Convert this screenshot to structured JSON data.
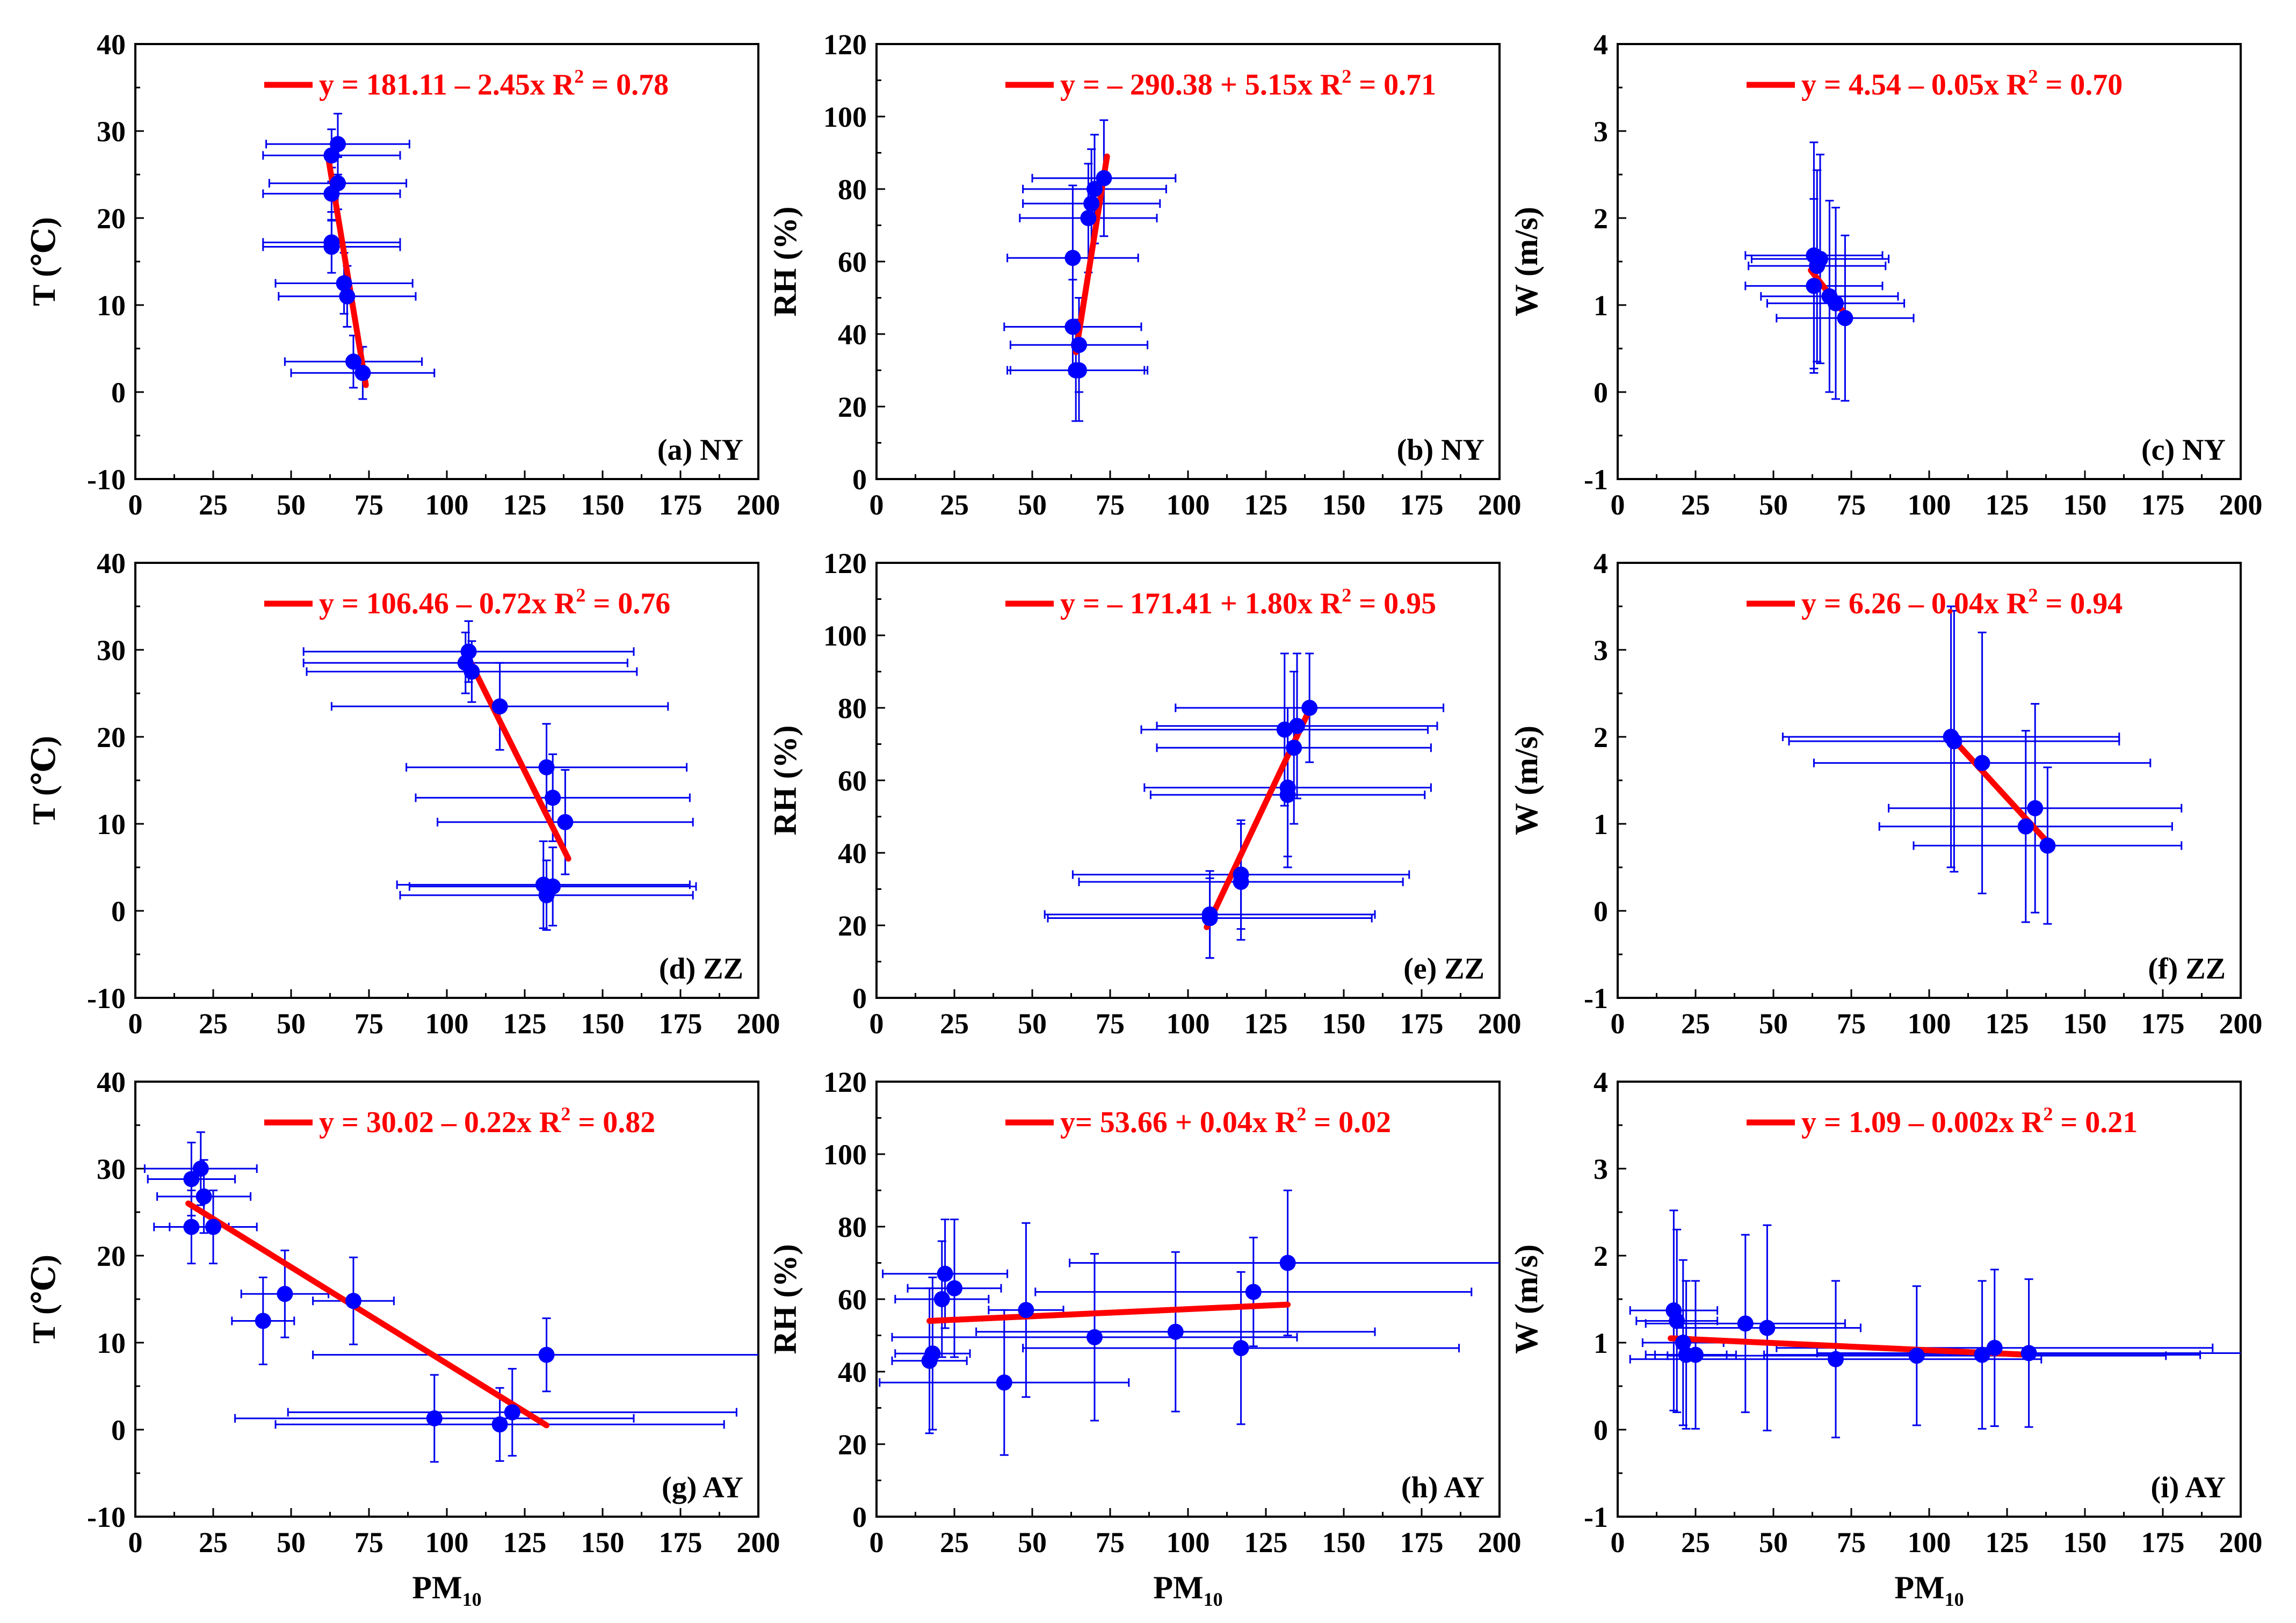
{
  "figure": {
    "x_axis_title": "PM",
    "x_axis_subscript": "10"
  },
  "chart_data": [
    {
      "id": "a",
      "type": "scatter",
      "panel_label": "(a) NY",
      "ylabel": "T (℃)",
      "xlim": [
        0,
        200
      ],
      "ylim": [
        -10,
        40
      ],
      "xticks": [
        "0",
        "25",
        "50",
        "75",
        "100",
        "125",
        "150",
        "175",
        "200"
      ],
      "yticks": [
        "-10",
        "0",
        "10",
        "20",
        "30",
        "40"
      ],
      "equation": {
        "lhs": "y = 181.11 – 2.45x",
        "r2_label": "R",
        "r2_sup": "2",
        "r2_value": " = 0.78"
      },
      "points": [
        {
          "x": 65,
          "y": 28.5
        },
        {
          "x": 63,
          "y": 27.2
        },
        {
          "x": 65,
          "y": 24
        },
        {
          "x": 63,
          "y": 22.8
        },
        {
          "x": 63,
          "y": 17.2
        },
        {
          "x": 63,
          "y": 16.7
        },
        {
          "x": 67,
          "y": 12.5
        },
        {
          "x": 68,
          "y": 11
        },
        {
          "x": 70,
          "y": 3.5
        },
        {
          "x": 73,
          "y": 2.2
        }
      ],
      "xerr": [
        23,
        22,
        22,
        22,
        22,
        22,
        22,
        22,
        22,
        23
      ],
      "yerr": [
        3.5,
        3,
        3,
        3,
        3.5,
        3,
        3.5,
        3.5,
        3,
        3
      ],
      "fit": {
        "x": [
          62,
          74
        ],
        "y": [
          26.8,
          0.8
        ]
      }
    },
    {
      "id": "b",
      "type": "scatter",
      "panel_label": "(b) NY",
      "ylabel": "RH (%)",
      "xlim": [
        0,
        200
      ],
      "ylim": [
        0,
        120
      ],
      "xticks": [
        "0",
        "25",
        "50",
        "75",
        "100",
        "125",
        "150",
        "175",
        "200"
      ],
      "yticks": [
        "0",
        "20",
        "40",
        "60",
        "80",
        "100",
        "120"
      ],
      "equation": {
        "lhs": "y = – 290.38 + 5.15x",
        "r2_label": "R",
        "r2_sup": "2",
        "r2_value": " = 0.71"
      },
      "points": [
        {
          "x": 73,
          "y": 83
        },
        {
          "x": 70,
          "y": 80
        },
        {
          "x": 69,
          "y": 76
        },
        {
          "x": 68,
          "y": 72
        },
        {
          "x": 63,
          "y": 61
        },
        {
          "x": 63,
          "y": 42
        },
        {
          "x": 65,
          "y": 37
        },
        {
          "x": 64,
          "y": 30
        },
        {
          "x": 65,
          "y": 30
        }
      ],
      "xerr": [
        23,
        23,
        22,
        22,
        21,
        22,
        22,
        22,
        22
      ],
      "yerr": [
        16,
        15,
        15,
        15,
        20,
        13,
        13,
        14,
        14
      ],
      "fit": {
        "x": [
          64,
          74
        ],
        "y": [
          35,
          89
        ]
      }
    },
    {
      "id": "c",
      "type": "scatter",
      "panel_label": "(c) NY",
      "ylabel": "W (m/s)",
      "xlim": [
        0,
        200
      ],
      "ylim": [
        -1,
        4
      ],
      "xticks": [
        "0",
        "25",
        "50",
        "75",
        "100",
        "125",
        "150",
        "175",
        "200"
      ],
      "yticks": [
        "-1",
        "0",
        "1",
        "2",
        "3",
        "4"
      ],
      "equation": {
        "lhs": "y = 4.54 – 0.05x",
        "r2_label": "R",
        "r2_sup": "2",
        "r2_value": " = 0.70"
      },
      "points": [
        {
          "x": 63,
          "y": 1.57
        },
        {
          "x": 65,
          "y": 1.53
        },
        {
          "x": 64,
          "y": 1.45
        },
        {
          "x": 63,
          "y": 1.22
        },
        {
          "x": 68,
          "y": 1.1
        },
        {
          "x": 70,
          "y": 1.02
        },
        {
          "x": 73,
          "y": 0.85
        }
      ],
      "xerr": [
        22,
        22,
        22,
        22,
        22,
        22,
        22
      ],
      "yerr": [
        1.3,
        1.2,
        1.1,
        1.0,
        1.1,
        1.1,
        0.95
      ],
      "fit": {
        "x": [
          62,
          74
        ],
        "y": [
          1.4,
          0.85
        ]
      }
    },
    {
      "id": "d",
      "type": "scatter",
      "panel_label": "(d) ZZ",
      "ylabel": "T (℃)",
      "xlim": [
        0,
        200
      ],
      "ylim": [
        -10,
        40
      ],
      "xticks": [
        "0",
        "25",
        "50",
        "75",
        "100",
        "125",
        "150",
        "175",
        "200"
      ],
      "yticks": [
        "-10",
        "0",
        "10",
        "20",
        "30",
        "40"
      ],
      "equation": {
        "lhs": "y = 106.46 – 0.72x",
        "r2_label": "R",
        "r2_sup": "2",
        "r2_value": " = 0.76"
      },
      "points": [
        {
          "x": 107,
          "y": 29.8
        },
        {
          "x": 106,
          "y": 28.5
        },
        {
          "x": 108,
          "y": 27.5
        },
        {
          "x": 117,
          "y": 23.5
        },
        {
          "x": 132,
          "y": 16.5
        },
        {
          "x": 134,
          "y": 13
        },
        {
          "x": 138,
          "y": 10.2
        },
        {
          "x": 131,
          "y": 3
        },
        {
          "x": 134,
          "y": 2.8
        },
        {
          "x": 132,
          "y": 1.8
        }
      ],
      "xerr": [
        53,
        52,
        53,
        54,
        45,
        44,
        41,
        47,
        46,
        47
      ],
      "yerr": [
        3.5,
        3.5,
        3.5,
        5,
        5,
        5,
        6,
        5,
        4.5,
        4
      ],
      "fit": {
        "x": [
          107,
          139
        ],
        "y": [
          29,
          6
        ]
      }
    },
    {
      "id": "e",
      "type": "scatter",
      "panel_label": "(e) ZZ",
      "ylabel": "RH (%)",
      "xlim": [
        0,
        200
      ],
      "ylim": [
        0,
        120
      ],
      "xticks": [
        "0",
        "25",
        "50",
        "75",
        "100",
        "125",
        "150",
        "175",
        "200"
      ],
      "yticks": [
        "0",
        "20",
        "40",
        "60",
        "80",
        "100",
        "120"
      ],
      "equation": {
        "lhs": "y = – 171.41 + 1.80x",
        "r2_label": "R",
        "r2_sup": "2",
        "r2_value": " = 0.95"
      },
      "points": [
        {
          "x": 139,
          "y": 80
        },
        {
          "x": 135,
          "y": 75
        },
        {
          "x": 131,
          "y": 74
        },
        {
          "x": 134,
          "y": 69
        },
        {
          "x": 132,
          "y": 58
        },
        {
          "x": 132,
          "y": 56
        },
        {
          "x": 117,
          "y": 34
        },
        {
          "x": 117,
          "y": 32
        },
        {
          "x": 107,
          "y": 23
        },
        {
          "x": 107,
          "y": 22
        }
      ],
      "xerr": [
        43,
        45,
        46,
        44,
        46,
        44,
        54,
        52,
        53,
        52
      ],
      "yerr": [
        15,
        20,
        21,
        21,
        22,
        17,
        15,
        16,
        12,
        11
      ],
      "fit": {
        "x": [
          106,
          139
        ],
        "y": [
          19.5,
          79.5
        ]
      }
    },
    {
      "id": "f",
      "type": "scatter",
      "panel_label": "(f) ZZ",
      "ylabel": "W (m/s)",
      "xlim": [
        0,
        200
      ],
      "ylim": [
        -1,
        4
      ],
      "xticks": [
        "0",
        "25",
        "50",
        "75",
        "100",
        "125",
        "150",
        "175",
        "200"
      ],
      "yticks": [
        "-1",
        "0",
        "1",
        "2",
        "3",
        "4"
      ],
      "equation": {
        "lhs": "y = 6.26 – 0.04x",
        "r2_label": "R",
        "r2_sup": "2",
        "r2_value": " = 0.94"
      },
      "points": [
        {
          "x": 107,
          "y": 2.0
        },
        {
          "x": 108,
          "y": 1.95
        },
        {
          "x": 117,
          "y": 1.7
        },
        {
          "x": 134,
          "y": 1.18
        },
        {
          "x": 131,
          "y": 0.97
        },
        {
          "x": 138,
          "y": 0.75
        }
      ],
      "xerr": [
        54,
        53,
        54,
        47,
        47,
        43
      ],
      "yerr": [
        1.5,
        1.5,
        1.5,
        1.2,
        1.1,
        0.9
      ],
      "fit": {
        "x": [
          107,
          139
        ],
        "y": [
          2.0,
          0.75
        ]
      }
    },
    {
      "id": "g",
      "type": "scatter",
      "panel_label": "(g) AY",
      "ylabel": "T (℃)",
      "xlim": [
        0,
        200
      ],
      "ylim": [
        -10,
        40
      ],
      "xticks": [
        "0",
        "25",
        "50",
        "75",
        "100",
        "125",
        "150",
        "175",
        "200"
      ],
      "yticks": [
        "-10",
        "0",
        "10",
        "20",
        "30",
        "40"
      ],
      "equation": {
        "lhs": "y = 30.02 – 0.22x",
        "r2_label": "R",
        "r2_sup": "2",
        "r2_value": " = 0.82"
      },
      "points": [
        {
          "x": 21,
          "y": 30
        },
        {
          "x": 18,
          "y": 28.8
        },
        {
          "x": 22,
          "y": 26.8
        },
        {
          "x": 18,
          "y": 23.3
        },
        {
          "x": 25,
          "y": 23.3
        },
        {
          "x": 48,
          "y": 15.6
        },
        {
          "x": 70,
          "y": 14.8
        },
        {
          "x": 41,
          "y": 12.5
        },
        {
          "x": 132,
          "y": 8.6
        },
        {
          "x": 96,
          "y": 1.3
        },
        {
          "x": 121,
          "y": 2
        },
        {
          "x": 117,
          "y": 0.6
        }
      ],
      "xerr": [
        18,
        14,
        15,
        12,
        14,
        14,
        13,
        10,
        75,
        64,
        72,
        72
      ],
      "yerr": [
        4.2,
        4.2,
        4.2,
        4.2,
        4.2,
        5,
        5,
        5,
        4.2,
        5,
        5,
        4.2
      ],
      "fit": {
        "x": [
          17,
          132
        ],
        "y": [
          26,
          0.5
        ]
      }
    },
    {
      "id": "h",
      "type": "scatter",
      "panel_label": "(h) AY",
      "ylabel": "RH (%)",
      "xlim": [
        0,
        200
      ],
      "ylim": [
        0,
        120
      ],
      "xticks": [
        "0",
        "25",
        "50",
        "75",
        "100",
        "125",
        "150",
        "175",
        "200"
      ],
      "yticks": [
        "0",
        "20",
        "40",
        "60",
        "80",
        "100",
        "120"
      ],
      "equation": {
        "lhs": "y= 53.66 + 0.04x",
        "r2_label": "R",
        "r2_sup": "2",
        "r2_value": " = 0.02"
      },
      "points": [
        {
          "x": 132,
          "y": 70
        },
        {
          "x": 22,
          "y": 67
        },
        {
          "x": 25,
          "y": 63
        },
        {
          "x": 121,
          "y": 62
        },
        {
          "x": 21,
          "y": 60
        },
        {
          "x": 48,
          "y": 57
        },
        {
          "x": 96,
          "y": 51
        },
        {
          "x": 70,
          "y": 49.5
        },
        {
          "x": 117,
          "y": 46.5
        },
        {
          "x": 18,
          "y": 45
        },
        {
          "x": 17,
          "y": 43
        },
        {
          "x": 41,
          "y": 37
        }
      ],
      "xerr": [
        70,
        20,
        15,
        70,
        15,
        12,
        64,
        65,
        70,
        12,
        12,
        40
      ],
      "yerr": [
        20,
        15,
        19,
        15,
        16,
        24,
        22,
        23,
        21,
        21,
        20,
        20
      ],
      "fit": {
        "x": [
          17,
          132
        ],
        "y": [
          54,
          58.5
        ]
      }
    },
    {
      "id": "i",
      "type": "scatter",
      "panel_label": "(i) AY",
      "ylabel": "W (m/s)",
      "xlim": [
        0,
        200
      ],
      "ylim": [
        -1,
        4
      ],
      "xticks": [
        "0",
        "25",
        "50",
        "75",
        "100",
        "125",
        "150",
        "175",
        "200"
      ],
      "yticks": [
        "-1",
        "0",
        "1",
        "2",
        "3",
        "4"
      ],
      "equation": {
        "lhs": "y = 1.09 – 0.002x",
        "r2_label": "R",
        "r2_sup": "2",
        "r2_value": " = 0.21"
      },
      "points": [
        {
          "x": 18,
          "y": 1.37
        },
        {
          "x": 19,
          "y": 1.25
        },
        {
          "x": 41,
          "y": 1.22
        },
        {
          "x": 48,
          "y": 1.17
        },
        {
          "x": 21,
          "y": 1.0
        },
        {
          "x": 121,
          "y": 0.94
        },
        {
          "x": 22,
          "y": 0.86
        },
        {
          "x": 25,
          "y": 0.86
        },
        {
          "x": 132,
          "y": 0.88
        },
        {
          "x": 117,
          "y": 0.86
        },
        {
          "x": 96,
          "y": 0.85
        },
        {
          "x": 70,
          "y": 0.81
        }
      ],
      "xerr": [
        14,
        13,
        32,
        30,
        13,
        70,
        13,
        13,
        68,
        70,
        80,
        66
      ],
      "yerr": [
        1.15,
        1.05,
        1.02,
        1.18,
        0.95,
        0.9,
        0.85,
        0.85,
        0.85,
        0.85,
        0.8,
        0.9
      ],
      "fit": {
        "x": [
          17,
          132
        ],
        "y": [
          1.05,
          0.86
        ]
      }
    }
  ]
}
